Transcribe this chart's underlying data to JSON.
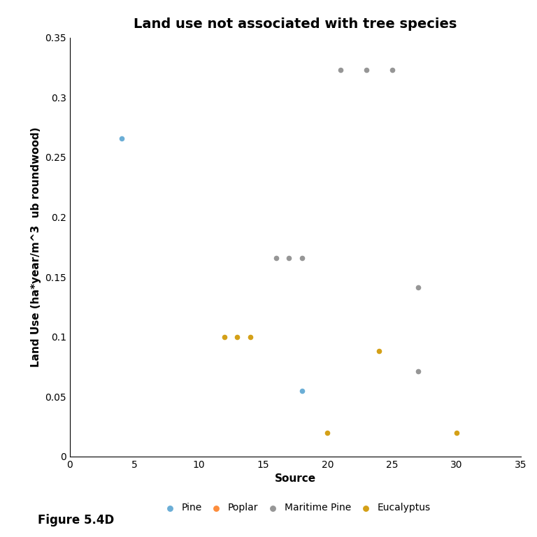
{
  "title": "Land use not associated with tree species",
  "xlabel": "Source",
  "ylabel": "Land Use (ha*year/m^3  ub roundwood)",
  "xlim": [
    0,
    35
  ],
  "ylim": [
    0,
    0.35
  ],
  "xticks": [
    0,
    5,
    10,
    15,
    20,
    25,
    30,
    35
  ],
  "yticks": [
    0,
    0.05,
    0.1,
    0.15,
    0.2,
    0.25,
    0.3,
    0.35
  ],
  "ytick_labels": [
    "0",
    "0.05",
    "0.1",
    "0.15",
    "0.2",
    "0.25",
    "0.3",
    "0.35"
  ],
  "figure_label": "Figure 5.4D",
  "species": [
    {
      "name": "Pine",
      "color": "#6baed6",
      "points": [
        [
          4,
          0.266
        ],
        [
          18,
          0.055
        ]
      ]
    },
    {
      "name": "Poplar",
      "color": "#fd8d3c",
      "points": []
    },
    {
      "name": "Maritime Pine",
      "color": "#969696",
      "points": [
        [
          16,
          0.166
        ],
        [
          17,
          0.166
        ],
        [
          18,
          0.166
        ],
        [
          21,
          0.323
        ],
        [
          23,
          0.323
        ],
        [
          25,
          0.323
        ],
        [
          27,
          0.141
        ],
        [
          27,
          0.071
        ]
      ]
    },
    {
      "name": "Eucalyptus",
      "color": "#d4a017",
      "points": [
        [
          12,
          0.1
        ],
        [
          13,
          0.1
        ],
        [
          14,
          0.1
        ],
        [
          20,
          0.02
        ],
        [
          24,
          0.088
        ],
        [
          30,
          0.02
        ]
      ]
    }
  ],
  "scatter_size": 20,
  "title_fontsize": 14,
  "label_fontsize": 11,
  "tick_fontsize": 10,
  "legend_fontsize": 10,
  "fig_label_fontsize": 12
}
